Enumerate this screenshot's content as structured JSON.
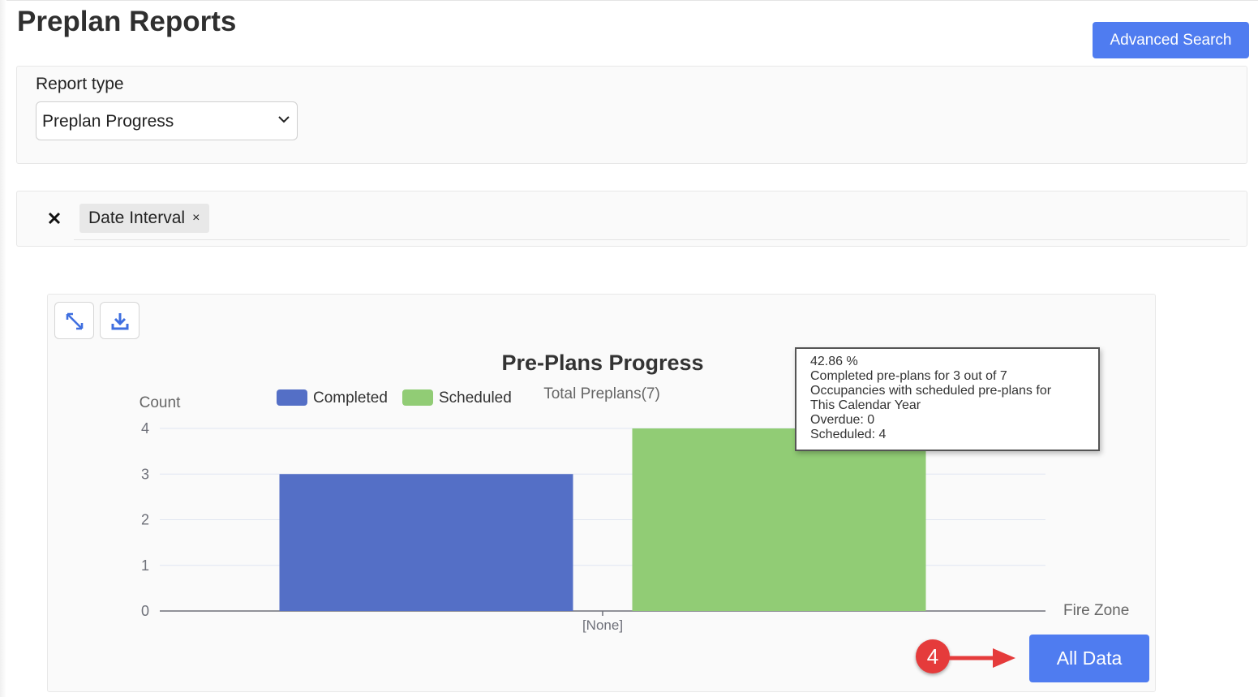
{
  "page": {
    "title": "Preplan Reports"
  },
  "header": {
    "advanced_search_label": "Advanced Search"
  },
  "report": {
    "label": "Report type",
    "selected": "Preplan Progress"
  },
  "filters": {
    "chips": [
      "Date Interval"
    ],
    "chip_remove_glyph": "×"
  },
  "chart_tools": {
    "icons": [
      "expand-icon",
      "download-icon"
    ]
  },
  "chart_data": {
    "type": "bar",
    "title": "Pre-Plans Progress",
    "subtitle": "Total Preplans(7)",
    "ylabel": "Count",
    "xlabel": "Fire Zone",
    "categories": [
      "[None]"
    ],
    "series": [
      {
        "name": "Completed",
        "values": [
          3
        ],
        "color": "#546fc6"
      },
      {
        "name": "Scheduled",
        "values": [
          4
        ],
        "color": "#91cc75"
      }
    ],
    "ylim": [
      0,
      4
    ],
    "yticks": [
      0,
      1,
      2,
      3,
      4
    ],
    "grid": true,
    "legend": "top-center"
  },
  "tooltip": {
    "lines": [
      "42.86 %",
      "Completed pre-plans for 3 out of 7",
      "Occupancies with scheduled pre-plans for",
      "This Calendar Year",
      "Overdue: 0",
      "Scheduled: 4"
    ]
  },
  "annotation": {
    "step_number": "4",
    "badge_color": "#e53b3b"
  },
  "footer": {
    "all_data_label": "All Data"
  },
  "colors": {
    "accent": "#4f7cf0"
  }
}
